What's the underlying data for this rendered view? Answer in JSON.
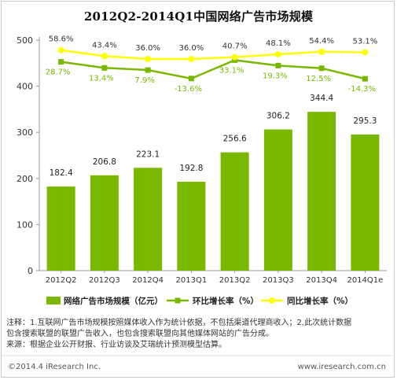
{
  "chart_data": {
    "type": "bar",
    "title": "2012Q2-2014Q1中国网络广告市场规模",
    "categories": [
      "2012Q2",
      "2012Q3",
      "2012Q4",
      "2013Q1",
      "2013Q2",
      "2013Q3",
      "2013Q4",
      "2014Q1e"
    ],
    "y_ticks": [
      "0",
      "100",
      "200",
      "300",
      "400",
      "500"
    ],
    "ylim": [
      0,
      500
    ],
    "series": [
      {
        "name": "网络广告市场规模（亿元）",
        "type": "bar",
        "color": "#7ab800",
        "values": [
          182.4,
          206.8,
          223.1,
          192.8,
          256.6,
          306.2,
          344.4,
          295.3
        ],
        "labels": [
          "182.4",
          "206.8",
          "223.1",
          "192.8",
          "256.6",
          "306.2",
          "344.4",
          "295.3"
        ]
      },
      {
        "name": "环比增长率（%）",
        "type": "line",
        "color": "#7ab800",
        "values": [
          28.7,
          13.4,
          7.9,
          -13.6,
          33.1,
          19.3,
          12.5,
          -14.3
        ],
        "labels": [
          "28.7%",
          "13.4%",
          "7.9%",
          "-13.6%",
          "33.1%",
          "19.3%",
          "12.5%",
          "-14.3%"
        ]
      },
      {
        "name": "同比增长率（%）",
        "type": "line",
        "color": "#ffff00",
        "values": [
          58.6,
          43.4,
          36.0,
          36.0,
          40.7,
          48.1,
          54.4,
          53.1
        ],
        "labels": [
          "58.6%",
          "43.4%",
          "36.0%",
          "36.0%",
          "40.7%",
          "48.1%",
          "54.4%",
          "53.1%"
        ]
      }
    ],
    "legend_position": "bottom",
    "grid": false
  },
  "notes": {
    "line1": "注释：1.互联网广告市场规模按照媒体收入作为统计依据，不包括渠道代理商收入；2.此次统计数据",
    "line2": "包含搜索联盟的联盟广告收入，也包含搜索联盟向其他媒体网站的广告分成。",
    "line3": "来源：根据企业公开财报、行业访谈及艾瑞统计预测模型估算。"
  },
  "footer": {
    "copyright": "©2014.4 iResearch Inc.",
    "website": "www.iresearch.com.cn"
  }
}
